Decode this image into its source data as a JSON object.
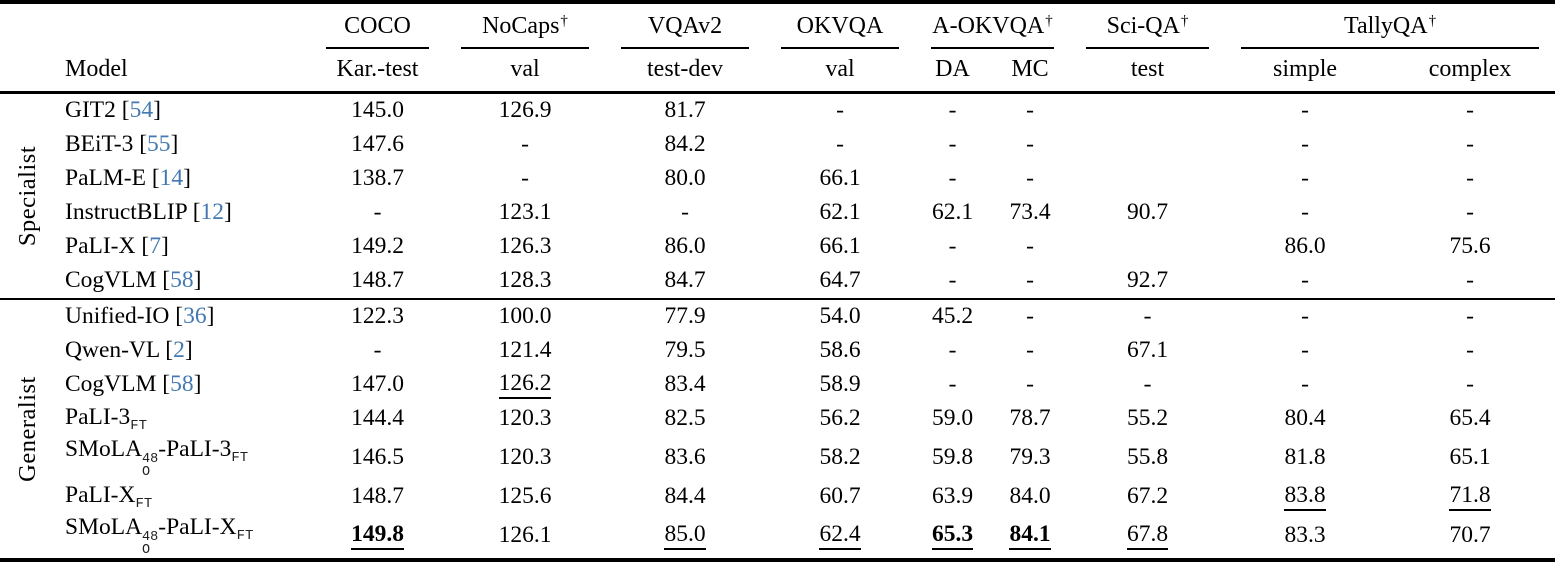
{
  "colors": {
    "citation_link": "#4379b0",
    "text": "#000000",
    "background": "#ffffff"
  },
  "dagger_symbol": "†",
  "header": {
    "model_label": "Model",
    "groups": [
      {
        "name": "COCO",
        "dagger": false,
        "subcols": [
          "Kar.-test"
        ]
      },
      {
        "name": "NoCaps",
        "dagger": true,
        "subcols": [
          "val"
        ]
      },
      {
        "name": "VQAv2",
        "dagger": false,
        "subcols": [
          "test-dev"
        ]
      },
      {
        "name": "OKVQA",
        "dagger": false,
        "subcols": [
          "val"
        ]
      },
      {
        "name": "A-OKVQA",
        "dagger": true,
        "subcols": [
          "DA",
          "MC"
        ]
      },
      {
        "name": "Sci-QA",
        "dagger": true,
        "subcols": [
          "test"
        ]
      },
      {
        "name": "TallyQA",
        "dagger": true,
        "subcols": [
          "simple",
          "complex"
        ]
      }
    ]
  },
  "sections": [
    {
      "label": "Specialist",
      "rows": [
        {
          "model": [
            {
              "t": "text",
              "v": "GIT2"
            },
            {
              "t": "cite",
              "v": "54"
            }
          ],
          "cells": [
            "145.0",
            "126.9",
            "81.7",
            "-",
            "-",
            "-",
            "",
            "-",
            "-"
          ]
        },
        {
          "model": [
            {
              "t": "text",
              "v": "BEiT-3"
            },
            {
              "t": "cite",
              "v": "55"
            }
          ],
          "cells": [
            "147.6",
            "-",
            "84.2",
            "-",
            "-",
            "-",
            "",
            "-",
            "-"
          ]
        },
        {
          "model": [
            {
              "t": "text",
              "v": "PaLM-E"
            },
            {
              "t": "cite",
              "v": "14"
            }
          ],
          "cells": [
            "138.7",
            "-",
            "80.0",
            "66.1",
            "-",
            "-",
            "",
            "-",
            "-"
          ]
        },
        {
          "model": [
            {
              "t": "text",
              "v": "InstructBLIP"
            },
            {
              "t": "cite",
              "v": "12"
            }
          ],
          "cells": [
            "-",
            "123.1",
            "-",
            "62.1",
            "62.1",
            "73.4",
            "90.7",
            "-",
            "-"
          ]
        },
        {
          "model": [
            {
              "t": "text",
              "v": "PaLI-X"
            },
            {
              "t": "cite",
              "v": "7"
            }
          ],
          "cells": [
            "149.2",
            "126.3",
            "86.0",
            "66.1",
            "-",
            "-",
            "",
            "86.0",
            "75.6"
          ]
        },
        {
          "model": [
            {
              "t": "text",
              "v": "CogVLM"
            },
            {
              "t": "cite",
              "v": "58"
            }
          ],
          "cells": [
            "148.7",
            "128.3",
            "84.7",
            "64.7",
            "-",
            "-",
            "92.7",
            "-",
            "-"
          ]
        }
      ]
    },
    {
      "label": "Generalist",
      "rows": [
        {
          "model": [
            {
              "t": "text",
              "v": "Unified-IO"
            },
            {
              "t": "cite",
              "v": "36"
            }
          ],
          "cells": [
            "122.3",
            "100.0",
            "77.9",
            "54.0",
            "45.2",
            "-",
            "-",
            "-",
            "-"
          ]
        },
        {
          "model": [
            {
              "t": "text",
              "v": "Qwen-VL"
            },
            {
              "t": "cite",
              "v": "2"
            }
          ],
          "cells": [
            "-",
            "121.4",
            "79.5",
            "58.6",
            "-",
            "-",
            "67.1",
            "-",
            "-"
          ]
        },
        {
          "model": [
            {
              "t": "text",
              "v": "CogVLM"
            },
            {
              "t": "cite",
              "v": "58"
            }
          ],
          "cells": [
            "147.0",
            {
              "v": "126.2",
              "u": true
            },
            "83.4",
            "58.9",
            "-",
            "-",
            "-",
            "-",
            "-"
          ]
        },
        {
          "model": [
            {
              "t": "text",
              "v": "PaLI-3"
            },
            {
              "t": "sub",
              "v": "FT"
            }
          ],
          "cells": [
            "144.4",
            "120.3",
            "82.5",
            "56.2",
            "59.0",
            "78.7",
            "55.2",
            "80.4",
            "65.4"
          ]
        },
        {
          "model": [
            {
              "t": "text",
              "v": "SMoLA"
            },
            {
              "t": "supsub",
              "sup": "48",
              "sub": "O"
            },
            {
              "t": "text",
              "v": "-PaLI-3"
            },
            {
              "t": "sub",
              "v": "FT"
            }
          ],
          "cells": [
            "146.5",
            "120.3",
            "83.6",
            "58.2",
            "59.8",
            "79.3",
            "55.8",
            "81.8",
            "65.1"
          ]
        },
        {
          "model": [
            {
              "t": "text",
              "v": "PaLI-X"
            },
            {
              "t": "sub",
              "v": "FT"
            }
          ],
          "cells": [
            "148.7",
            "125.6",
            "84.4",
            "60.7",
            "63.9",
            "84.0",
            "67.2",
            {
              "v": "83.8",
              "u": true
            },
            {
              "v": "71.8",
              "u": true
            }
          ]
        },
        {
          "model": [
            {
              "t": "text",
              "v": "SMoLA"
            },
            {
              "t": "supsub",
              "sup": "48",
              "sub": "O"
            },
            {
              "t": "text",
              "v": "-PaLI-X"
            },
            {
              "t": "sub",
              "v": "FT"
            }
          ],
          "cells": [
            {
              "v": "149.8",
              "b": true,
              "u": true
            },
            "126.1",
            {
              "v": "85.0",
              "u": true
            },
            {
              "v": "62.4",
              "u": true
            },
            {
              "v": "65.3",
              "b": true,
              "u": true
            },
            {
              "v": "84.1",
              "b": true,
              "u": true
            },
            {
              "v": "67.8",
              "u": true
            },
            "83.3",
            "70.7"
          ]
        }
      ]
    }
  ]
}
